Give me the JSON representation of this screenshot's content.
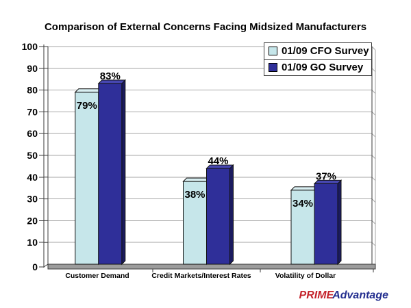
{
  "chart_data": {
    "type": "bar",
    "style": "3d-clustered-column",
    "title": "Comparison of External Concerns Facing Midsized Manufacturers",
    "categories": [
      "Customer Demand",
      "Credit Markets/Interest Rates",
      "Volatility of Dollar"
    ],
    "series": [
      {
        "name": "01/09 CFO Survey",
        "values": [
          79,
          38,
          34
        ],
        "color": {
          "face": "#c6e6ea",
          "top": "#d9eff2",
          "side": "#8fb6bf"
        }
      },
      {
        "name": "01/09 GO Survey",
        "values": [
          83,
          44,
          37
        ],
        "color": {
          "face": "#2f2f99",
          "top": "#4747b2",
          "side": "#1b1b5e"
        }
      }
    ],
    "value_suffix": "%",
    "ylim": [
      0,
      100
    ],
    "ytick_step": 10,
    "grid": true,
    "legend_position": "top-right",
    "colors": {
      "grid": "#a6a6a6",
      "axis": "#3a3a3a",
      "floor": "#9c9c9c",
      "background": "#ffffff",
      "label": "#000000"
    }
  },
  "branding": {
    "prime": "PRIME",
    "advantage": "Advantage",
    "prime_color": "#c4232b",
    "advantage_color": "#232e8f"
  }
}
